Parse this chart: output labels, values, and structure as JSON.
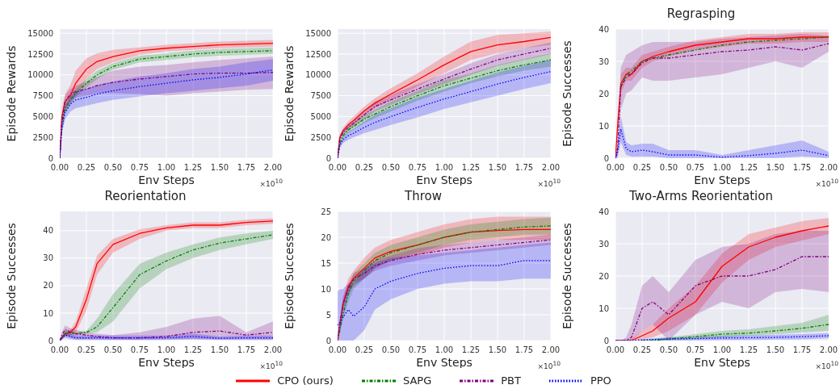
{
  "chart_data": [
    {
      "type": "line",
      "xlabel": "Env Steps",
      "ylabel": "Episode Rewards",
      "annotations": [
        "×10$^{10}$"
      ],
      "grid": true,
      "legend": "bottom",
      "x": [
        0,
        0.02,
        0.05,
        0.1,
        0.15,
        0.25,
        0.35,
        0.5,
        0.75,
        1,
        1.25,
        1.5,
        1.75,
        2
      ],
      "xlim": [
        0,
        2
      ],
      "xticks": [
        {
          "value": 0,
          "label": "0.00"
        },
        {
          "value": 0.25,
          "label": "0.25"
        },
        {
          "value": 0.5,
          "label": "0.50"
        },
        {
          "value": 0.75,
          "label": "0.75"
        },
        {
          "value": 1,
          "label": "1.00"
        },
        {
          "value": 1.25,
          "label": "1.25"
        },
        {
          "value": 1.5,
          "label": "1.50"
        },
        {
          "value": 1.75,
          "label": "1.75"
        },
        {
          "value": 2,
          "label": "2.00"
        }
      ],
      "ylim": [
        0,
        15500
      ],
      "yticks": [
        0,
        2500,
        5000,
        7500,
        10000,
        12500,
        15000
      ],
      "series": [
        {
          "name": "CPO (ours)",
          "color": "#ff0000",
          "line_style": "solid",
          "values": [
            0,
            5000,
            6800,
            7500,
            9000,
            10700,
            11600,
            12200,
            12900,
            13200,
            13400,
            13600,
            13700,
            13800
          ],
          "lower": [
            0,
            4000,
            5500,
            6500,
            7500,
            9500,
            10700,
            11500,
            12400,
            12800,
            13000,
            13200,
            13300,
            13400
          ],
          "upper": [
            0,
            6000,
            7700,
            8800,
            10500,
            12000,
            12600,
            13000,
            13300,
            13600,
            13800,
            14000,
            14100,
            14200
          ]
        },
        {
          "name": "SAPG",
          "color": "#008000",
          "line_style": "dashed",
          "values": [
            0,
            4000,
            6000,
            7000,
            7800,
            9000,
            10000,
            11000,
            11900,
            12200,
            12500,
            12700,
            12800,
            12900
          ],
          "lower": [
            0,
            3500,
            5500,
            6500,
            7300,
            8500,
            9500,
            10600,
            11500,
            11800,
            12100,
            12300,
            12400,
            12500
          ],
          "upper": [
            0,
            4500,
            6500,
            7500,
            8300,
            9500,
            10500,
            11400,
            12300,
            12600,
            12900,
            13100,
            13200,
            13300
          ]
        },
        {
          "name": "PBT",
          "color": "#800080",
          "line_style": "dashed",
          "values": [
            0,
            4500,
            6800,
            7700,
            8000,
            8300,
            8700,
            9100,
            9500,
            9800,
            10100,
            10200,
            10200,
            10300
          ],
          "lower": [
            0,
            4000,
            6000,
            7000,
            7300,
            7500,
            7800,
            7800,
            7700,
            7500,
            7800,
            8000,
            8200,
            8300
          ],
          "upper": [
            0,
            5000,
            7500,
            8300,
            8700,
            9200,
            9700,
            10500,
            11000,
            11200,
            11500,
            11800,
            12000,
            12200
          ]
        },
        {
          "name": "PPO",
          "color": "#0000ff",
          "line_style": "dotted",
          "values": [
            0,
            3500,
            5500,
            6500,
            7000,
            7300,
            7700,
            8100,
            8600,
            9000,
            9400,
            9700,
            10100,
            10600
          ],
          "lower": [
            0,
            3000,
            4700,
            5600,
            6000,
            6300,
            6600,
            7000,
            7400,
            7800,
            8100,
            8400,
            8700,
            9300
          ],
          "upper": [
            0,
            4000,
            6300,
            7400,
            8000,
            8300,
            8800,
            9200,
            9800,
            10200,
            10700,
            11000,
            11500,
            11900
          ]
        }
      ]
    },
    {
      "type": "line",
      "xlabel": "Env Steps",
      "ylabel": "Episode Rewards",
      "annotations": [
        "×10$^{10}$"
      ],
      "grid": true,
      "x": [
        0,
        0.02,
        0.05,
        0.1,
        0.15,
        0.25,
        0.35,
        0.5,
        0.75,
        1,
        1.25,
        1.5,
        1.75,
        2
      ],
      "xlim": [
        0,
        2
      ],
      "xticks": [
        {
          "value": 0,
          "label": "0.00"
        },
        {
          "value": 0.25,
          "label": "0.25"
        },
        {
          "value": 0.5,
          "label": "0.50"
        },
        {
          "value": 0.75,
          "label": "0.75"
        },
        {
          "value": 1,
          "label": "1.00"
        },
        {
          "value": 1.25,
          "label": "1.25"
        },
        {
          "value": 1.5,
          "label": "1.50"
        },
        {
          "value": 1.75,
          "label": "1.75"
        },
        {
          "value": 2,
          "label": "2.00"
        }
      ],
      "ylim": [
        0,
        15500
      ],
      "yticks": [
        0,
        2500,
        5000,
        7500,
        10000,
        12500,
        15000
      ],
      "series": [
        {
          "color": "#ff0000",
          "line_style": "solid",
          "values": [
            0,
            2500,
            3300,
            4000,
            4500,
            5700,
            6600,
            7700,
            9400,
            11200,
            12800,
            13600,
            14000,
            14500
          ],
          "lower": [
            0,
            2200,
            3000,
            3600,
            4000,
            5200,
            6000,
            7000,
            8600,
            10200,
            11800,
            12600,
            13200,
            13600
          ],
          "upper": [
            0,
            2800,
            3600,
            4400,
            5000,
            6200,
            7200,
            8400,
            10200,
            12200,
            14000,
            14800,
            15000,
            15200
          ]
        },
        {
          "color": "#008000",
          "line_style": "dashed",
          "values": [
            0,
            1800,
            2700,
            3400,
            3800,
            4700,
            5300,
            6200,
            7500,
            8700,
            9600,
            10500,
            11200,
            11800
          ],
          "lower": [
            0,
            1500,
            2300,
            3000,
            3400,
            4200,
            4800,
            5600,
            6900,
            8000,
            9000,
            9800,
            10500,
            11000
          ],
          "upper": [
            0,
            2100,
            3100,
            3800,
            4200,
            5200,
            5800,
            6800,
            8100,
            9400,
            10200,
            11200,
            11900,
            12600
          ]
        },
        {
          "color": "#800080",
          "line_style": "dashed",
          "values": [
            0,
            2300,
            3100,
            3700,
            4200,
            5200,
            6200,
            7000,
            8300,
            9500,
            10700,
            11800,
            12500,
            13200
          ],
          "lower": [
            0,
            2000,
            2800,
            3300,
            3800,
            4700,
            5600,
            6400,
            7700,
            8900,
            10000,
            11100,
            11800,
            12500
          ],
          "upper": [
            0,
            2600,
            3400,
            4100,
            4600,
            5700,
            6800,
            7600,
            8900,
            10100,
            11400,
            12500,
            13200,
            13900
          ]
        },
        {
          "color": "#0000ff",
          "line_style": "dotted",
          "values": [
            0,
            1500,
            2200,
            2700,
            3000,
            3700,
            4300,
            5000,
            6100,
            7100,
            8000,
            8900,
            9700,
            10400
          ],
          "lower": [
            0,
            1200,
            1800,
            2200,
            2500,
            3000,
            3400,
            4000,
            4900,
            5900,
            6700,
            7500,
            8300,
            9000
          ],
          "upper": [
            0,
            1800,
            2600,
            3200,
            3500,
            4400,
            5200,
            6000,
            7300,
            8300,
            9300,
            10300,
            11100,
            11800
          ]
        }
      ]
    },
    {
      "type": "line",
      "title": "Regrasping",
      "xlabel": "Env Steps",
      "ylabel": "Episode Successes",
      "annotations": [
        "×10$^{10}$"
      ],
      "grid": true,
      "x": [
        0,
        0.02,
        0.05,
        0.1,
        0.15,
        0.25,
        0.35,
        0.5,
        0.75,
        1,
        1.25,
        1.5,
        1.75,
        2
      ],
      "xlim": [
        0,
        2
      ],
      "xticks": [
        {
          "value": 0,
          "label": "0.00"
        },
        {
          "value": 0.25,
          "label": "0.25"
        },
        {
          "value": 0.5,
          "label": "0.50"
        },
        {
          "value": 0.75,
          "label": "0.75"
        },
        {
          "value": 1,
          "label": "1.00"
        },
        {
          "value": 1.25,
          "label": "1.25"
        },
        {
          "value": 1.5,
          "label": "1.50"
        },
        {
          "value": 1.75,
          "label": "1.75"
        },
        {
          "value": 2,
          "label": "2.00"
        }
      ],
      "ylim": [
        0,
        40
      ],
      "yticks": [
        0,
        10,
        20,
        30,
        40
      ],
      "series": [
        {
          "color": "#ff0000",
          "line_style": "solid",
          "values": [
            0,
            10,
            23,
            26,
            26,
            30,
            31.5,
            33,
            35,
            36,
            37,
            37,
            37.5,
            37.5
          ],
          "lower": [
            0,
            8,
            20,
            24,
            24,
            28,
            30,
            31.5,
            33.5,
            34.5,
            35.5,
            35.5,
            36,
            36
          ],
          "upper": [
            0,
            12,
            26,
            28,
            28,
            32,
            33,
            34.5,
            36.5,
            37.5,
            38.5,
            38.5,
            39,
            39
          ]
        },
        {
          "color": "#008000",
          "line_style": "dashed",
          "values": [
            null,
            null,
            22,
            26,
            27,
            30,
            31,
            32,
            33.5,
            35,
            36,
            36.5,
            37,
            37.5
          ]
        },
        {
          "color": "#800080",
          "line_style": "dashed",
          "values": [
            0,
            3,
            22,
            25,
            26,
            29.5,
            31,
            31,
            32,
            33,
            33.5,
            34.5,
            33.5,
            35.5
          ],
          "lower": [
            0,
            1,
            15,
            20,
            21,
            25,
            24,
            24,
            25,
            26,
            28,
            30,
            28,
            33
          ],
          "upper": [
            0,
            4,
            28,
            32,
            33,
            35,
            36,
            36,
            36,
            37,
            37.5,
            38,
            38.5,
            38
          ]
        },
        {
          "color": "#0000ff",
          "line_style": "dotted",
          "values": [
            0,
            2,
            9,
            3,
            2,
            2.5,
            2,
            1,
            1,
            0.3,
            0.8,
            1.5,
            2.5,
            0.8
          ],
          "lower": [
            0,
            0,
            5,
            1,
            0.5,
            0.5,
            0.5,
            0,
            0,
            0,
            0,
            0,
            0.5,
            0
          ],
          "upper": [
            0,
            4,
            13,
            5,
            4,
            4.5,
            4.5,
            2.5,
            2.5,
            1,
            2.5,
            4,
            5.5,
            2
          ]
        }
      ]
    },
    {
      "type": "line",
      "title": "Reorientation",
      "xlabel": "Env Steps",
      "ylabel": "Episode Successes",
      "annotations": [
        "×10$^{10}$"
      ],
      "grid": true,
      "x": [
        0,
        0.02,
        0.05,
        0.1,
        0.15,
        0.25,
        0.35,
        0.5,
        0.75,
        1,
        1.25,
        1.5,
        1.75,
        2
      ],
      "xlim": [
        0,
        2
      ],
      "xticks": [
        {
          "value": 0,
          "label": "0.00"
        },
        {
          "value": 0.25,
          "label": "0.25"
        },
        {
          "value": 0.5,
          "label": "0.50"
        },
        {
          "value": 0.75,
          "label": "0.75"
        },
        {
          "value": 1,
          "label": "1.00"
        },
        {
          "value": 1.25,
          "label": "1.25"
        },
        {
          "value": 1.5,
          "label": "1.50"
        },
        {
          "value": 1.75,
          "label": "1.75"
        },
        {
          "value": 2,
          "label": "2.00"
        }
      ],
      "ylim": [
        0,
        47
      ],
      "yticks": [
        0,
        10,
        20,
        30,
        40
      ],
      "series": [
        {
          "color": "#ff0000",
          "line_style": "solid",
          "values": [
            0,
            1,
            2.5,
            3,
            5,
            15,
            28,
            35,
            39,
            41,
            42,
            42,
            43,
            43.5
          ],
          "lower": [
            0,
            0.5,
            1.5,
            2,
            3,
            11,
            24,
            32,
            37,
            40,
            41,
            41,
            42,
            42.5
          ],
          "upper": [
            0,
            1.5,
            3.5,
            4,
            7,
            19,
            31,
            37,
            40.5,
            42,
            43,
            43,
            44,
            44.5
          ]
        },
        {
          "color": "#008000",
          "line_style": "dashed",
          "values": [
            0,
            1,
            2.5,
            3,
            2.5,
            3,
            5,
            12,
            24,
            29,
            33,
            35.5,
            37,
            38.5
          ],
          "lower": [
            0,
            0.5,
            1.5,
            2,
            2,
            2.5,
            3,
            7,
            19,
            26,
            30,
            33,
            35,
            37
          ],
          "upper": [
            0,
            1.5,
            3.5,
            4,
            3,
            3.5,
            8,
            17,
            28,
            32,
            35,
            37.5,
            39,
            40
          ]
        },
        {
          "color": "#800080",
          "line_style": "dashed",
          "values": [
            0,
            2,
            4,
            3,
            2.5,
            2,
            1.5,
            1,
            1,
            1.5,
            3,
            3.5,
            2,
            3
          ],
          "lower": [
            0,
            0.5,
            2,
            1,
            0.5,
            0.5,
            0.5,
            0.3,
            0.3,
            0.5,
            0.5,
            0.5,
            0.5,
            0.5
          ],
          "upper": [
            0,
            3,
            5.5,
            4.5,
            4,
            3,
            2.5,
            2,
            3,
            5,
            8,
            9,
            3,
            7
          ]
        },
        {
          "color": "#0000ff",
          "line_style": "dotted",
          "values": [
            0,
            1,
            2,
            1.5,
            1,
            1,
            1,
            1,
            1,
            1,
            1.5,
            0.8,
            1,
            1
          ],
          "lower": [
            0,
            0.3,
            1,
            0.5,
            0.2,
            0.2,
            0.2,
            0.2,
            0.2,
            0.2,
            0.5,
            0.2,
            0.2,
            0.2
          ],
          "upper": [
            0,
            1.7,
            3,
            2.5,
            1.8,
            1.8,
            1.8,
            1.8,
            1.8,
            1.8,
            2.5,
            1.5,
            1.8,
            1.8
          ]
        }
      ]
    },
    {
      "type": "line",
      "title": "Throw",
      "xlabel": "Env Steps",
      "ylabel": "Episode Successes",
      "annotations": [
        "×10$^{10}$"
      ],
      "grid": true,
      "x": [
        0,
        0.02,
        0.05,
        0.1,
        0.15,
        0.25,
        0.35,
        0.5,
        0.75,
        1,
        1.25,
        1.5,
        1.75,
        2
      ],
      "xlim": [
        0,
        2
      ],
      "xticks": [
        {
          "value": 0,
          "label": "0.00"
        },
        {
          "value": 0.25,
          "label": "0.25"
        },
        {
          "value": 0.5,
          "label": "0.50"
        },
        {
          "value": 0.75,
          "label": "0.75"
        },
        {
          "value": 1,
          "label": "1.00"
        },
        {
          "value": 1.25,
          "label": "1.25"
        },
        {
          "value": 1.5,
          "label": "1.50"
        },
        {
          "value": 1.75,
          "label": "1.75"
        },
        {
          "value": 2,
          "label": "2.00"
        }
      ],
      "ylim": [
        0,
        25
      ],
      "yticks": [
        0,
        5,
        10,
        15,
        20,
        25
      ],
      "series": [
        {
          "color": "#ff0000",
          "line_style": "solid",
          "values": [
            0,
            3,
            7,
            10.5,
            12,
            14,
            16,
            17.3,
            18.5,
            20,
            21,
            21.3,
            21.5,
            21.5
          ],
          "lower": [
            0,
            2,
            5.5,
            9,
            10.5,
            12,
            14,
            15.5,
            16.5,
            18,
            19,
            19.5,
            19.5,
            19.5
          ],
          "upper": [
            0,
            4,
            8.5,
            12,
            13.5,
            16,
            18,
            19.5,
            21,
            22.5,
            23.5,
            24,
            24,
            24
          ]
        },
        {
          "color": "#008000",
          "line_style": "dashed",
          "values": [
            0,
            2,
            5,
            9,
            11.5,
            13.5,
            15.5,
            17,
            18.5,
            20,
            21,
            21.5,
            22,
            22.2
          ],
          "lower": [
            0,
            1,
            4,
            7.5,
            10,
            12,
            14,
            15.5,
            17,
            18.5,
            19.5,
            20,
            20.5,
            20.5
          ],
          "upper": [
            0,
            3,
            6,
            10.5,
            13,
            15,
            17,
            18.5,
            20,
            21.5,
            22.5,
            23,
            23.5,
            23.8
          ]
        },
        {
          "color": "#800080",
          "line_style": "dashed",
          "values": [
            0,
            3,
            7,
            10,
            12,
            13,
            14.5,
            15.5,
            16.7,
            17.5,
            18,
            18.5,
            19,
            19.5
          ],
          "lower": [
            0,
            2,
            6,
            9,
            11,
            12,
            13.5,
            14.5,
            15.5,
            16.5,
            17,
            17.5,
            18,
            18.5
          ],
          "upper": [
            0,
            4,
            8,
            11,
            13,
            14,
            15.5,
            16.5,
            17.9,
            18.5,
            19,
            19.5,
            20,
            20.5
          ]
        },
        {
          "color": "#0000ff",
          "line_style": "dotted",
          "values": [
            3,
            3.5,
            4.5,
            6,
            4.7,
            6.5,
            10,
            11.5,
            13,
            14,
            14.5,
            14.5,
            15.5,
            15.5
          ],
          "lower": [
            0,
            0,
            0,
            0,
            0,
            2,
            6,
            8,
            10,
            11,
            11.5,
            11.5,
            12,
            12
          ],
          "upper": [
            9.5,
            10,
            10,
            11,
            11,
            14,
            15,
            16,
            16.5,
            17,
            17.5,
            18,
            18.5,
            19
          ]
        }
      ]
    },
    {
      "type": "line",
      "title": "Two-Arms Reorientation",
      "xlabel": "Env Steps",
      "ylabel": "Episode Successes",
      "annotations": [
        "×10$^{10}$"
      ],
      "grid": true,
      "x": [
        0,
        0.02,
        0.05,
        0.1,
        0.15,
        0.25,
        0.35,
        0.5,
        0.75,
        1,
        1.25,
        1.5,
        1.75,
        2
      ],
      "xlim": [
        0,
        2
      ],
      "xticks": [
        {
          "value": 0,
          "label": "0.00"
        },
        {
          "value": 0.25,
          "label": "0.25"
        },
        {
          "value": 0.5,
          "label": "0.50"
        },
        {
          "value": 0.75,
          "label": "0.75"
        },
        {
          "value": 1,
          "label": "1.00"
        },
        {
          "value": 1.25,
          "label": "1.25"
        },
        {
          "value": 1.5,
          "label": "1.50"
        },
        {
          "value": 1.75,
          "label": "1.75"
        },
        {
          "value": 2,
          "label": "2.00"
        }
      ],
      "ylim": [
        0,
        40
      ],
      "yticks": [
        0,
        10,
        20,
        30,
        40
      ],
      "series": [
        {
          "color": "#ff0000",
          "line_style": "solid",
          "values": [
            0,
            0,
            0,
            0,
            0,
            1.5,
            3,
            7,
            12,
            23,
            29,
            32,
            34,
            35.5
          ],
          "lower": [
            0,
            0,
            0,
            0,
            0,
            0.5,
            1,
            3,
            8,
            18,
            25,
            29,
            31,
            33
          ],
          "upper": [
            0,
            0,
            0,
            0,
            0.5,
            3,
            5,
            10,
            17,
            27,
            33,
            35,
            37,
            38
          ]
        },
        {
          "color": "#008000",
          "line_style": "dashed",
          "values": [
            null,
            null,
            null,
            null,
            null,
            0,
            0,
            0.5,
            1.2,
            2,
            2.3,
            3,
            3.8,
            5
          ],
          "lower": [
            null,
            null,
            null,
            null,
            null,
            0,
            0,
            0,
            0.5,
            1,
            1.5,
            2,
            2.5,
            3
          ],
          "upper": [
            null,
            null,
            null,
            null,
            null,
            0,
            0.5,
            1,
            2,
            3,
            3.5,
            4.5,
            5.5,
            8
          ]
        },
        {
          "color": "#800080",
          "line_style": "dashed",
          "values": [
            0,
            0,
            0,
            0,
            1,
            10,
            12,
            8,
            17,
            20,
            20,
            22,
            26,
            26
          ],
          "lower": [
            0,
            0,
            0,
            0,
            0,
            3,
            5,
            0,
            8,
            12,
            10,
            15,
            16,
            15
          ],
          "upper": [
            0,
            0,
            0,
            1,
            5,
            17,
            20,
            15,
            25,
            29,
            30,
            33,
            34,
            34
          ]
        },
        {
          "color": "#0000ff",
          "line_style": "dotted",
          "values": [
            0,
            0,
            0,
            0,
            0,
            0.2,
            0.3,
            0.5,
            0.6,
            0.8,
            0.9,
            1,
            1.2,
            1.5
          ],
          "lower": [
            0,
            0,
            0,
            0,
            0,
            0,
            0,
            0,
            0,
            0.1,
            0.2,
            0.3,
            0.4,
            0.7
          ],
          "upper": [
            0,
            0,
            0,
            0,
            0,
            0.5,
            0.7,
            1,
            1.2,
            1.5,
            1.6,
            1.8,
            2,
            2.3
          ]
        }
      ]
    }
  ]
}
